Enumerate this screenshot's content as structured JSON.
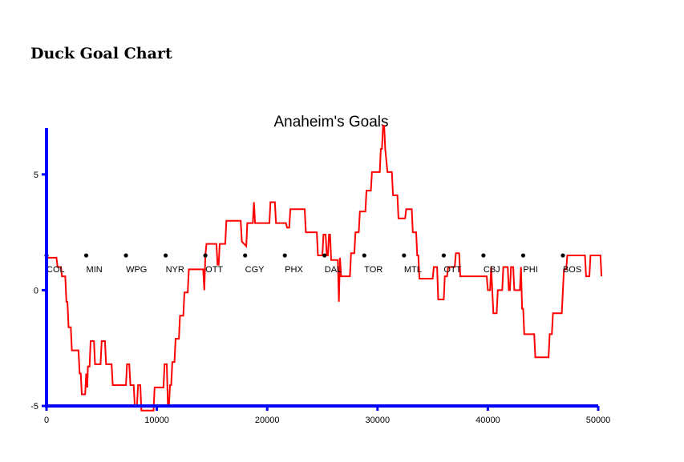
{
  "page": {
    "heading": "Duck Goal Chart"
  },
  "chart_data": {
    "type": "line",
    "title": "Anaheim's Goals",
    "xlabel": "",
    "ylabel": "",
    "xlim": [
      0,
      50000
    ],
    "ylim": [
      -5,
      7
    ],
    "x_ticks": [
      "0",
      "10000",
      "20000",
      "30000",
      "40000",
      "50000"
    ],
    "y_ticks": [
      "-5",
      "0",
      "5"
    ],
    "grid": false,
    "colors": {
      "axis": "#0000ff",
      "line": "#ff0000",
      "marker": "#000000"
    },
    "markers": {
      "y": 1.5,
      "x": [
        0,
        3600,
        7200,
        10800,
        14400,
        18000,
        21600,
        25200,
        28800,
        32400,
        36000,
        39600,
        43200,
        46800
      ],
      "labels": [
        "COL",
        "MIN",
        "WPG",
        "NYR",
        "OTT",
        "CGY",
        "PHX",
        "DAL",
        "TOR",
        "MTL",
        "OTT",
        "CBJ",
        "PHI",
        "BOS"
      ]
    },
    "series": [
      {
        "points": [
          [
            0,
            1.5
          ],
          [
            100,
            1.4
          ],
          [
            900,
            1.4
          ],
          [
            1000,
            1.0
          ],
          [
            1300,
            1.0
          ],
          [
            1400,
            0.6
          ],
          [
            1700,
            0.6
          ],
          [
            1800,
            -0.5
          ],
          [
            1900,
            -0.5
          ],
          [
            2000,
            -1.6
          ],
          [
            2200,
            -1.6
          ],
          [
            2300,
            -2.6
          ],
          [
            2900,
            -2.6
          ],
          [
            3000,
            -3.6
          ],
          [
            3100,
            -3.6
          ],
          [
            3200,
            -4.5
          ],
          [
            3500,
            -4.5
          ],
          [
            3600,
            -3.6
          ],
          [
            3700,
            -4.2
          ],
          [
            3750,
            -3.3
          ],
          [
            3900,
            -3.3
          ],
          [
            4000,
            -2.2
          ],
          [
            4300,
            -2.2
          ],
          [
            4400,
            -3.2
          ],
          [
            4900,
            -3.2
          ],
          [
            5000,
            -2.2
          ],
          [
            5300,
            -2.2
          ],
          [
            5400,
            -3.2
          ],
          [
            5900,
            -3.2
          ],
          [
            6000,
            -4.1
          ],
          [
            7200,
            -4.1
          ],
          [
            7300,
            -3.2
          ],
          [
            7500,
            -3.2
          ],
          [
            7600,
            -4.1
          ],
          [
            7900,
            -4.1
          ],
          [
            8000,
            -5.0
          ],
          [
            8200,
            -5.0
          ],
          [
            8300,
            -4.1
          ],
          [
            8500,
            -4.1
          ],
          [
            8600,
            -5.2
          ],
          [
            9700,
            -5.2
          ],
          [
            9800,
            -4.2
          ],
          [
            10600,
            -4.2
          ],
          [
            10700,
            -3.2
          ],
          [
            10900,
            -3.2
          ],
          [
            11000,
            -5.0
          ],
          [
            11100,
            -5.0
          ],
          [
            11200,
            -4.1
          ],
          [
            11300,
            -4.1
          ],
          [
            11400,
            -3.1
          ],
          [
            11600,
            -3.1
          ],
          [
            11700,
            -2.1
          ],
          [
            12000,
            -2.1
          ],
          [
            12100,
            -1.1
          ],
          [
            12400,
            -1.1
          ],
          [
            12500,
            -0.1
          ],
          [
            12800,
            -0.1
          ],
          [
            12900,
            0.9
          ],
          [
            14200,
            0.9
          ],
          [
            14300,
            0.0
          ],
          [
            14400,
            1.5
          ],
          [
            14500,
            2.0
          ],
          [
            15400,
            2.0
          ],
          [
            15500,
            1.1
          ],
          [
            15600,
            1.1
          ],
          [
            15700,
            2.0
          ],
          [
            16200,
            2.0
          ],
          [
            16300,
            3.0
          ],
          [
            17600,
            3.0
          ],
          [
            17700,
            2.1
          ],
          [
            18100,
            1.9
          ],
          [
            18200,
            2.9
          ],
          [
            18700,
            2.9
          ],
          [
            18800,
            3.8
          ],
          [
            18900,
            2.9
          ],
          [
            20200,
            2.9
          ],
          [
            20300,
            3.8
          ],
          [
            20700,
            3.8
          ],
          [
            20800,
            2.9
          ],
          [
            21700,
            2.9
          ],
          [
            21800,
            2.7
          ],
          [
            22000,
            2.7
          ],
          [
            22100,
            3.5
          ],
          [
            23400,
            3.5
          ],
          [
            23500,
            2.5
          ],
          [
            24500,
            2.5
          ],
          [
            24600,
            1.5
          ],
          [
            25000,
            1.5
          ],
          [
            25100,
            2.4
          ],
          [
            25300,
            2.4
          ],
          [
            25400,
            1.5
          ],
          [
            25500,
            1.5
          ],
          [
            25600,
            2.4
          ],
          [
            25700,
            2.4
          ],
          [
            25800,
            1.3
          ],
          [
            26400,
            1.3
          ],
          [
            26500,
            -0.5
          ],
          [
            26600,
            1.4
          ],
          [
            26700,
            0.6
          ],
          [
            27500,
            0.6
          ],
          [
            27600,
            1.6
          ],
          [
            27900,
            1.6
          ],
          [
            28000,
            2.5
          ],
          [
            28300,
            2.5
          ],
          [
            28400,
            3.4
          ],
          [
            28900,
            3.4
          ],
          [
            29000,
            4.3
          ],
          [
            29400,
            4.3
          ],
          [
            29500,
            5.1
          ],
          [
            30200,
            5.1
          ],
          [
            30300,
            6.1
          ],
          [
            30400,
            6.1
          ],
          [
            30500,
            7.1
          ],
          [
            30600,
            7.1
          ],
          [
            30700,
            6.1
          ],
          [
            30900,
            5.1
          ],
          [
            31300,
            5.1
          ],
          [
            31400,
            4.1
          ],
          [
            31800,
            4.1
          ],
          [
            31900,
            3.1
          ],
          [
            32500,
            3.1
          ],
          [
            32600,
            3.5
          ],
          [
            33100,
            3.5
          ],
          [
            33200,
            2.5
          ],
          [
            33500,
            2.5
          ],
          [
            33600,
            1.5
          ],
          [
            33700,
            1.5
          ],
          [
            33800,
            0.5
          ],
          [
            35000,
            0.5
          ],
          [
            35100,
            1.0
          ],
          [
            35400,
            1.0
          ],
          [
            35500,
            -0.4
          ],
          [
            36000,
            -0.4
          ],
          [
            36100,
            0.6
          ],
          [
            36300,
            0.6
          ],
          [
            36400,
            1.0
          ],
          [
            37000,
            1.0
          ],
          [
            37100,
            1.6
          ],
          [
            37400,
            1.6
          ],
          [
            37500,
            0.6
          ],
          [
            39900,
            0.6
          ],
          [
            40000,
            0.0
          ],
          [
            40200,
            0.0
          ],
          [
            40300,
            1.0
          ],
          [
            40400,
            0.0
          ],
          [
            40500,
            -1.0
          ],
          [
            40800,
            -1.0
          ],
          [
            40900,
            0.0
          ],
          [
            41300,
            0.0
          ],
          [
            41400,
            1.0
          ],
          [
            41800,
            1.0
          ],
          [
            41900,
            0.0
          ],
          [
            42000,
            0.0
          ],
          [
            42100,
            1.0
          ],
          [
            42300,
            1.0
          ],
          [
            42400,
            0.0
          ],
          [
            42900,
            0.0
          ],
          [
            43000,
            1.0
          ],
          [
            43100,
            -0.8
          ],
          [
            43200,
            -0.8
          ],
          [
            43300,
            -1.9
          ],
          [
            43400,
            -1.9
          ],
          [
            43500,
            -1.9
          ],
          [
            44200,
            -1.9
          ],
          [
            44300,
            -2.9
          ],
          [
            45500,
            -2.9
          ],
          [
            45600,
            -1.9
          ],
          [
            45800,
            -1.9
          ],
          [
            45900,
            -1.0
          ],
          [
            46700,
            -1.0
          ],
          [
            46800,
            0.0
          ],
          [
            46900,
            0.9
          ],
          [
            47100,
            0.9
          ],
          [
            47200,
            1.5
          ],
          [
            48800,
            1.5
          ],
          [
            48900,
            0.6
          ],
          [
            49200,
            0.6
          ],
          [
            49300,
            1.5
          ],
          [
            50200,
            1.5
          ],
          [
            50300,
            0.6
          ]
        ]
      }
    ]
  }
}
